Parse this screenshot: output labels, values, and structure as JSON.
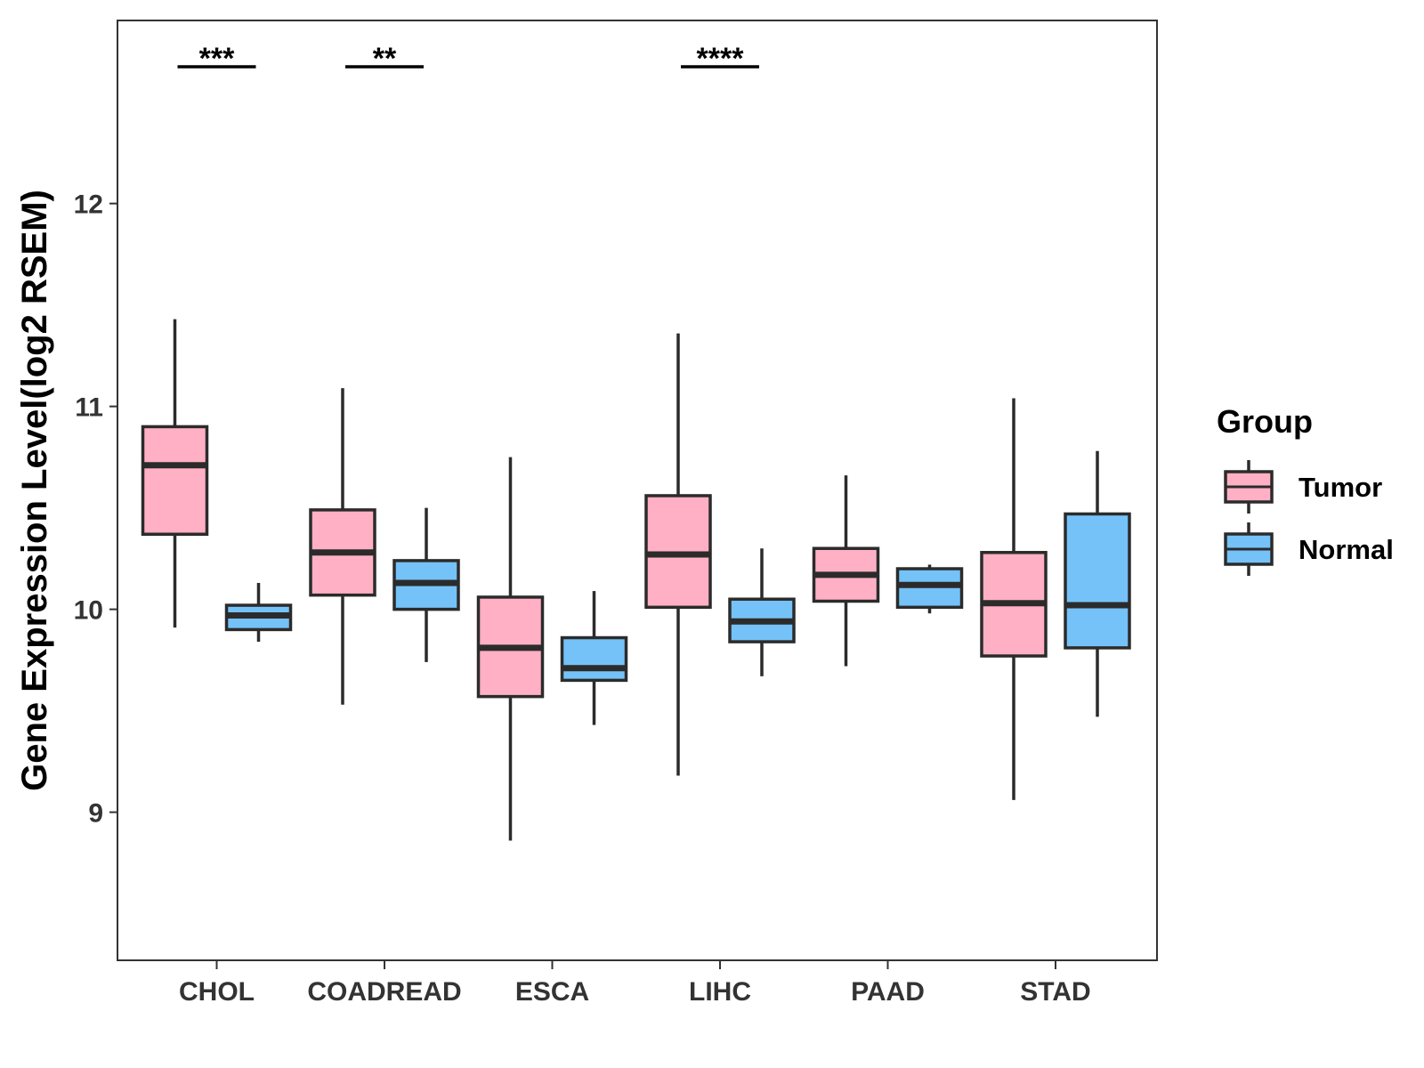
{
  "chart_data": {
    "type": "boxplot",
    "title": "",
    "xlabel": "",
    "ylabel": "Gene Expression Level(log2 RSEM)",
    "ylim": [
      8.27,
      12.9
    ],
    "yticks": [
      9,
      10,
      11,
      12
    ],
    "ytick_labels": [
      "9",
      "10",
      "11",
      "12"
    ],
    "categories": [
      "CHOL",
      "COADREAD",
      "ESCA",
      "LIHC",
      "PAAD",
      "STAD"
    ],
    "legend": {
      "title": "Group",
      "position": "right",
      "entries": [
        {
          "name": "Tumor",
          "color": "#FFB0C4"
        },
        {
          "name": "Normal",
          "color": "#74C2F8"
        }
      ]
    },
    "series": [
      {
        "name": "Tumor",
        "color": "#FFB0C4",
        "boxes": [
          {
            "category": "CHOL",
            "min": 9.91,
            "q1": 10.37,
            "median": 10.71,
            "q3": 10.9,
            "max": 11.43
          },
          {
            "category": "COADREAD",
            "min": 9.53,
            "q1": 10.07,
            "median": 10.28,
            "q3": 10.49,
            "max": 11.09
          },
          {
            "category": "ESCA",
            "min": 8.86,
            "q1": 9.57,
            "median": 9.81,
            "q3": 10.06,
            "max": 10.75
          },
          {
            "category": "LIHC",
            "min": 9.18,
            "q1": 10.01,
            "median": 10.27,
            "q3": 10.56,
            "max": 11.36
          },
          {
            "category": "PAAD",
            "min": 9.72,
            "q1": 10.04,
            "median": 10.17,
            "q3": 10.3,
            "max": 10.66
          },
          {
            "category": "STAD",
            "min": 9.06,
            "q1": 9.77,
            "median": 10.03,
            "q3": 10.28,
            "max": 11.04
          }
        ]
      },
      {
        "name": "Normal",
        "color": "#74C2F8",
        "boxes": [
          {
            "category": "CHOL",
            "min": 9.84,
            "q1": 9.9,
            "median": 9.97,
            "q3": 10.02,
            "max": 10.13
          },
          {
            "category": "COADREAD",
            "min": 9.74,
            "q1": 10.0,
            "median": 10.13,
            "q3": 10.24,
            "max": 10.5
          },
          {
            "category": "ESCA",
            "min": 9.43,
            "q1": 9.65,
            "median": 9.71,
            "q3": 9.86,
            "max": 10.09
          },
          {
            "category": "LIHC",
            "min": 9.67,
            "q1": 9.84,
            "median": 9.94,
            "q3": 10.05,
            "max": 10.3
          },
          {
            "category": "PAAD",
            "min": 9.98,
            "q1": 10.01,
            "median": 10.12,
            "q3": 10.2,
            "max": 10.22
          },
          {
            "category": "STAD",
            "min": 9.47,
            "q1": 9.81,
            "median": 10.02,
            "q3": 10.47,
            "max": 10.78
          }
        ]
      }
    ],
    "annotations": [
      {
        "category": "CHOL",
        "label": "***"
      },
      {
        "category": "COADREAD",
        "label": "**"
      },
      {
        "category": "LIHC",
        "label": "****"
      }
    ]
  }
}
